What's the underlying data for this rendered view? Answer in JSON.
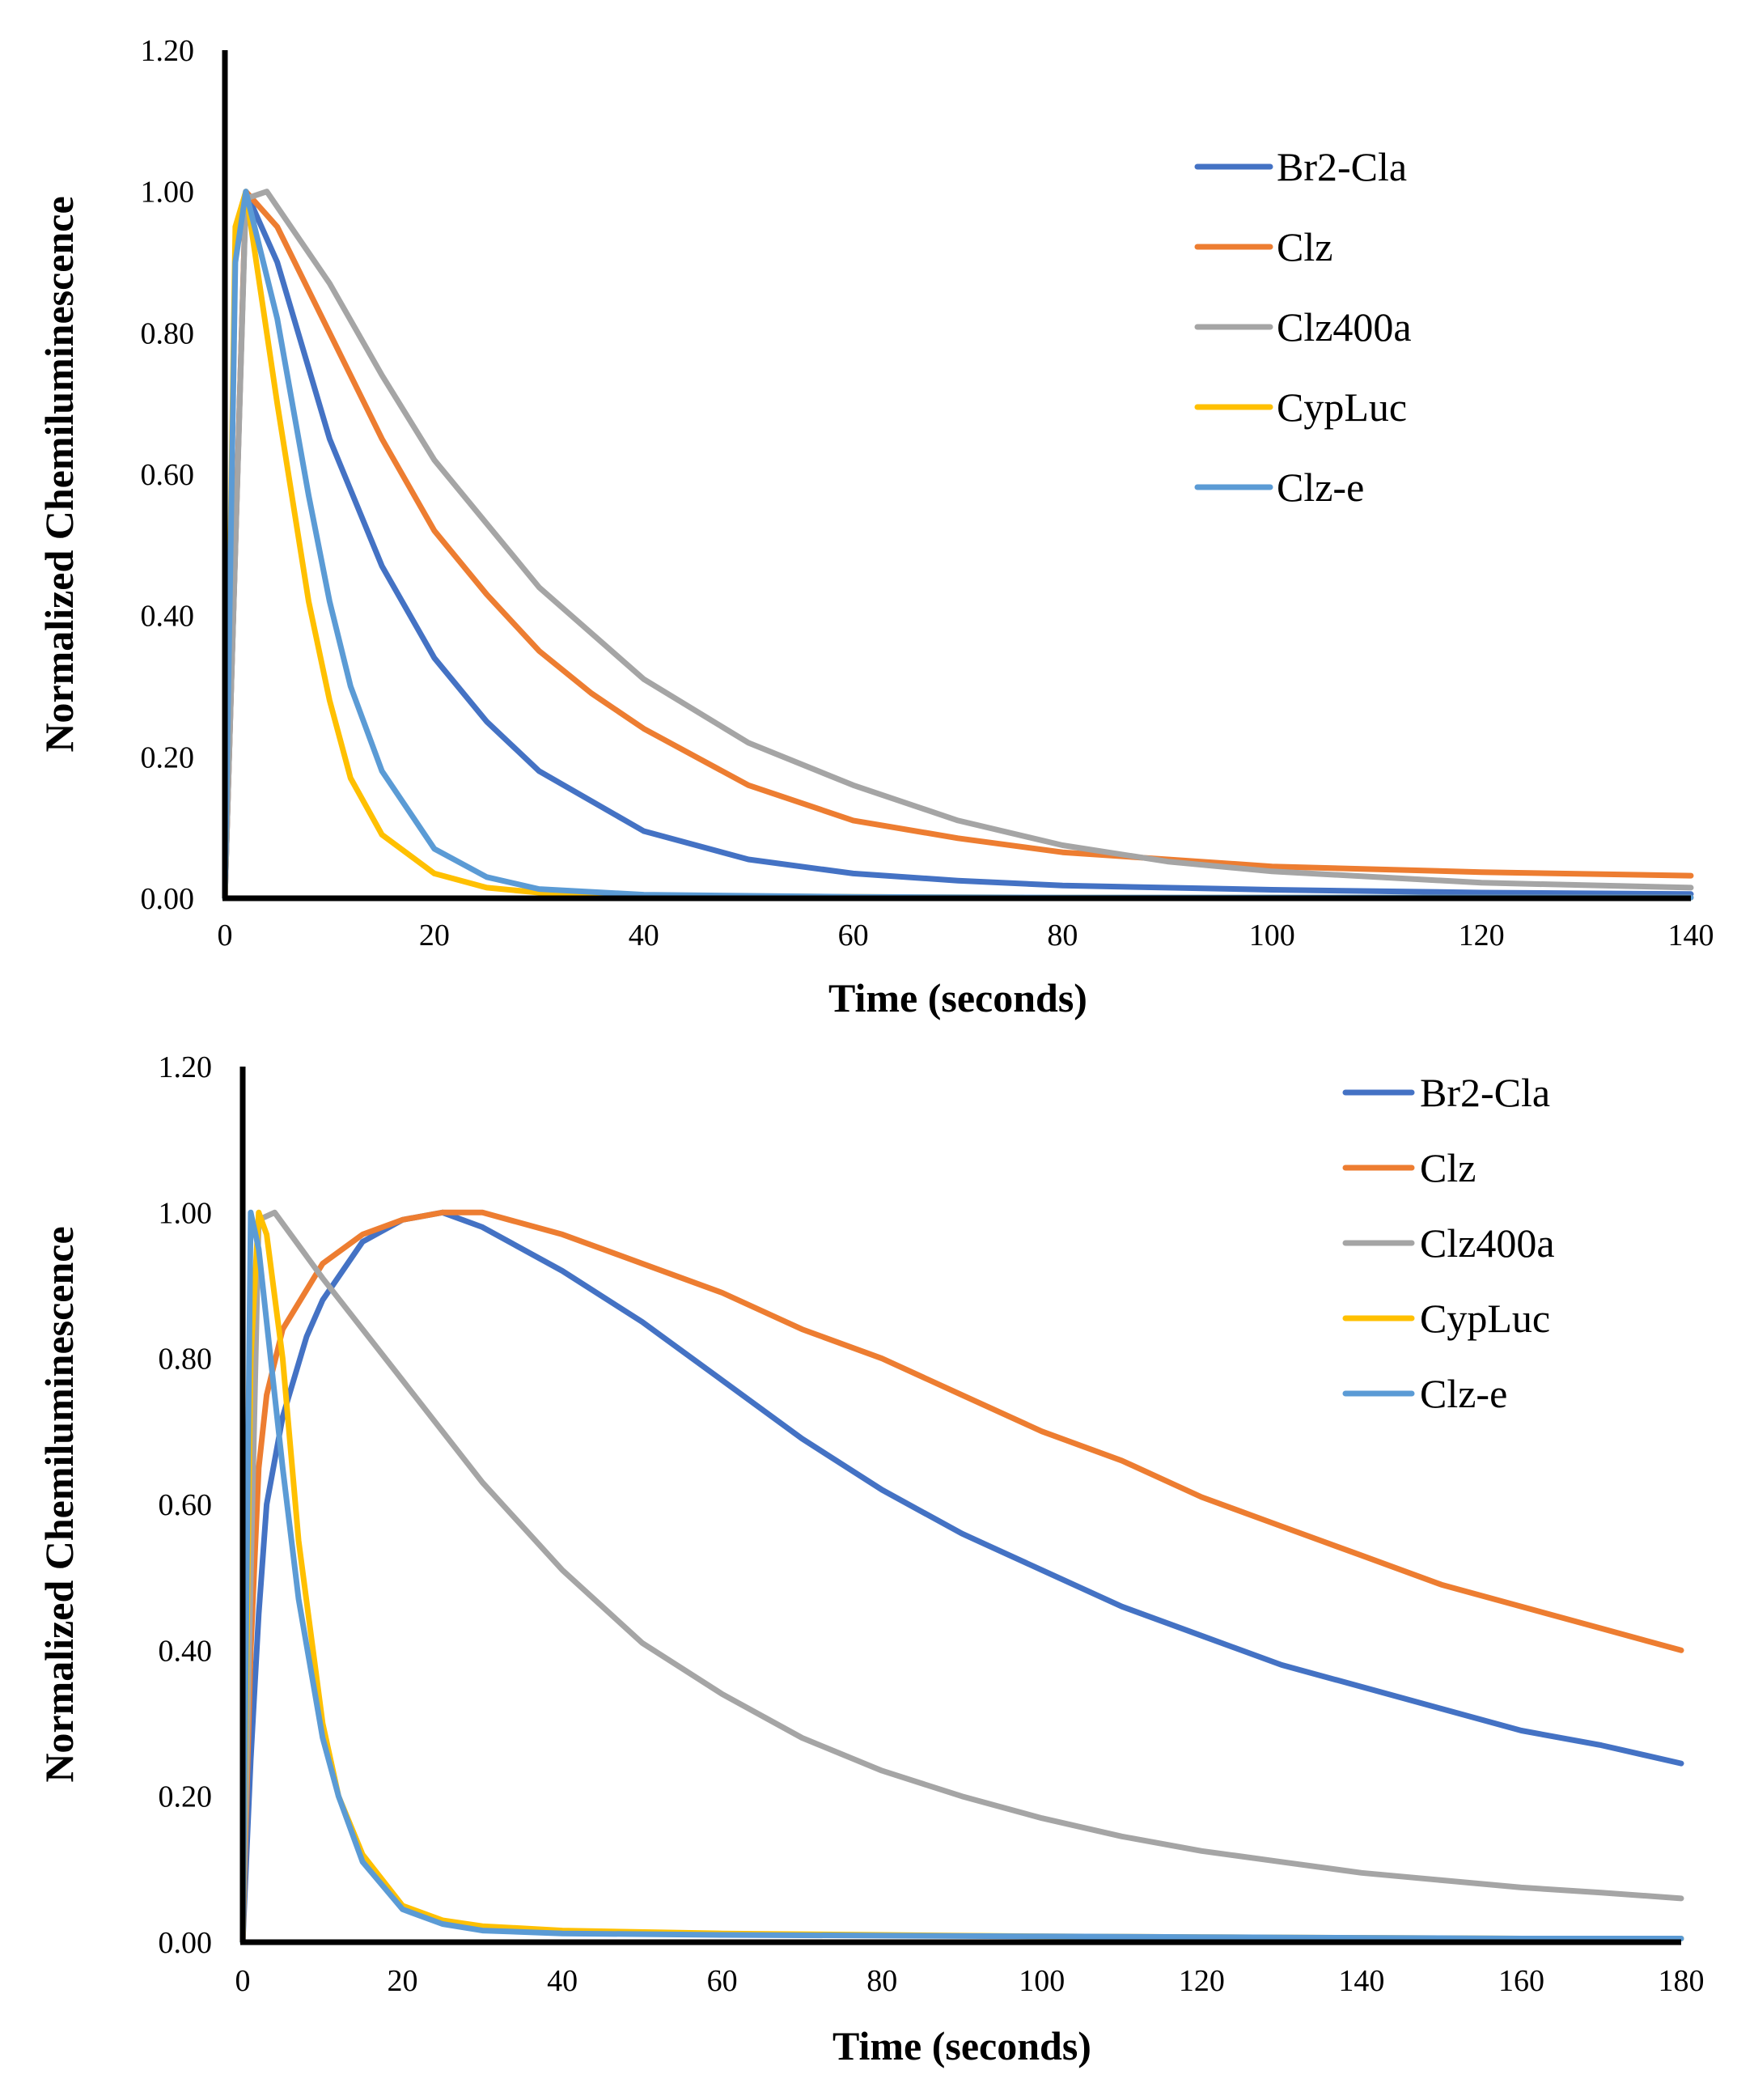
{
  "chart_data": [
    {
      "type": "line",
      "title": "",
      "xlabel": "Time (seconds)",
      "ylabel": "Normalized Chemiluminescence",
      "xlim": [
        0,
        140
      ],
      "ylim": [
        0,
        1.2
      ],
      "xticks": [
        0,
        20,
        40,
        60,
        80,
        100,
        120,
        140
      ],
      "xtick_labels": [
        "0",
        "20",
        "40",
        "60",
        "80",
        "100",
        "120",
        "140"
      ],
      "yticks": [
        0,
        0.2,
        0.4,
        0.6,
        0.8,
        1.0,
        1.2
      ],
      "ytick_labels": [
        "0.00",
        "0.20",
        "0.40",
        "0.60",
        "0.80",
        "1.00",
        "1.20"
      ],
      "grid": false,
      "legend_position": "top-right",
      "series": [
        {
          "name": "Br2-Cla",
          "color": "#4472C4",
          "x": [
            0,
            2,
            5,
            10,
            15,
            20,
            25,
            30,
            40,
            50,
            60,
            70,
            80,
            100,
            120,
            140
          ],
          "y": [
            0,
            1.0,
            0.9,
            0.65,
            0.47,
            0.34,
            0.25,
            0.18,
            0.095,
            0.055,
            0.035,
            0.025,
            0.018,
            0.012,
            0.008,
            0.006
          ]
        },
        {
          "name": "Clz",
          "color": "#ED7D31",
          "x": [
            0,
            2,
            5,
            10,
            15,
            20,
            25,
            30,
            35,
            40,
            50,
            60,
            70,
            80,
            100,
            120,
            140
          ],
          "y": [
            0,
            1.0,
            0.95,
            0.8,
            0.65,
            0.52,
            0.43,
            0.35,
            0.29,
            0.24,
            0.16,
            0.11,
            0.085,
            0.065,
            0.045,
            0.037,
            0.032
          ]
        },
        {
          "name": "Clz400a",
          "color": "#A5A5A5",
          "x": [
            0,
            2,
            4,
            10,
            15,
            20,
            30,
            40,
            50,
            60,
            70,
            80,
            90,
            100,
            120,
            140
          ],
          "y": [
            0,
            0.99,
            1.0,
            0.87,
            0.74,
            0.62,
            0.44,
            0.31,
            0.22,
            0.16,
            0.11,
            0.075,
            0.052,
            0.038,
            0.022,
            0.015
          ]
        },
        {
          "name": "CypLuc",
          "color": "#FFC000",
          "x": [
            0,
            1,
            2,
            5,
            8,
            10,
            12,
            15,
            20,
            25,
            30,
            40,
            60,
            80,
            100,
            140
          ],
          "y": [
            0,
            0.95,
            1.0,
            0.7,
            0.42,
            0.28,
            0.17,
            0.09,
            0.035,
            0.015,
            0.008,
            0.004,
            0.002,
            0.001,
            0.001,
            0.001
          ]
        },
        {
          "name": "Clz-e",
          "color": "#5B9BD5",
          "x": [
            0,
            1,
            2,
            5,
            8,
            10,
            12,
            15,
            20,
            25,
            30,
            40,
            60,
            80,
            100,
            140
          ],
          "y": [
            0,
            0.9,
            1.0,
            0.82,
            0.57,
            0.42,
            0.3,
            0.18,
            0.07,
            0.03,
            0.013,
            0.005,
            0.002,
            0.001,
            0.001,
            0.001
          ]
        }
      ]
    },
    {
      "type": "line",
      "title": "",
      "xlabel": "Time (seconds)",
      "ylabel": "Normalized Chemiluminescence",
      "xlim": [
        0,
        180
      ],
      "ylim": [
        0,
        1.2
      ],
      "xticks": [
        0,
        20,
        40,
        60,
        80,
        100,
        120,
        140,
        160,
        180
      ],
      "xtick_labels": [
        "0",
        "20",
        "40",
        "60",
        "80",
        "100",
        "120",
        "140",
        "160",
        "180"
      ],
      "yticks": [
        0,
        0.2,
        0.4,
        0.6,
        0.8,
        1.0,
        1.2
      ],
      "ytick_labels": [
        "0.00",
        "0.20",
        "0.40",
        "0.60",
        "0.80",
        "1.00",
        "1.20"
      ],
      "grid": false,
      "legend_position": "top-right",
      "series": [
        {
          "name": "Br2-Cla",
          "color": "#4472C4",
          "x": [
            0,
            1,
            2,
            3,
            5,
            8,
            10,
            15,
            20,
            25,
            30,
            40,
            50,
            60,
            70,
            80,
            90,
            100,
            110,
            120,
            130,
            140,
            150,
            160,
            170,
            180
          ],
          "y": [
            0,
            0.25,
            0.45,
            0.6,
            0.72,
            0.83,
            0.88,
            0.96,
            0.99,
            1.0,
            0.98,
            0.92,
            0.85,
            0.77,
            0.69,
            0.62,
            0.56,
            0.51,
            0.46,
            0.42,
            0.38,
            0.35,
            0.32,
            0.29,
            0.27,
            0.245
          ]
        },
        {
          "name": "Clz",
          "color": "#ED7D31",
          "x": [
            0,
            1,
            2,
            3,
            5,
            10,
            15,
            20,
            25,
            30,
            40,
            50,
            60,
            70,
            80,
            90,
            100,
            110,
            120,
            130,
            140,
            150,
            160,
            170,
            180
          ],
          "y": [
            0,
            0.4,
            0.65,
            0.75,
            0.84,
            0.93,
            0.97,
            0.99,
            1.0,
            1.0,
            0.97,
            0.93,
            0.89,
            0.84,
            0.8,
            0.75,
            0.7,
            0.66,
            0.61,
            0.57,
            0.53,
            0.49,
            0.46,
            0.43,
            0.4
          ]
        },
        {
          "name": "Clz400a",
          "color": "#A5A5A5",
          "x": [
            0,
            2,
            4,
            10,
            15,
            20,
            30,
            40,
            50,
            60,
            70,
            80,
            90,
            100,
            110,
            120,
            130,
            140,
            150,
            160,
            170,
            180
          ],
          "y": [
            0,
            0.99,
            1.0,
            0.91,
            0.84,
            0.77,
            0.63,
            0.51,
            0.41,
            0.34,
            0.28,
            0.235,
            0.2,
            0.17,
            0.145,
            0.125,
            0.11,
            0.095,
            0.085,
            0.075,
            0.068,
            0.06
          ]
        },
        {
          "name": "CypLuc",
          "color": "#FFC000",
          "x": [
            0,
            1,
            2,
            3,
            5,
            7,
            10,
            12,
            15,
            20,
            25,
            30,
            40,
            60,
            80,
            100,
            120,
            140,
            160,
            180
          ],
          "y": [
            0,
            0.8,
            1.0,
            0.97,
            0.8,
            0.55,
            0.3,
            0.2,
            0.12,
            0.05,
            0.03,
            0.022,
            0.016,
            0.012,
            0.01,
            0.008,
            0.007,
            0.006,
            0.005,
            0.005
          ]
        },
        {
          "name": "Clz-e",
          "color": "#5B9BD5",
          "x": [
            0,
            1,
            2,
            3,
            5,
            7,
            10,
            12,
            15,
            20,
            25,
            30,
            40,
            60,
            80,
            100,
            120,
            140,
            160,
            180
          ],
          "y": [
            0,
            1.0,
            0.95,
            0.85,
            0.65,
            0.47,
            0.28,
            0.2,
            0.11,
            0.045,
            0.025,
            0.016,
            0.012,
            0.01,
            0.009,
            0.008,
            0.007,
            0.006,
            0.005,
            0.005
          ]
        }
      ]
    }
  ]
}
